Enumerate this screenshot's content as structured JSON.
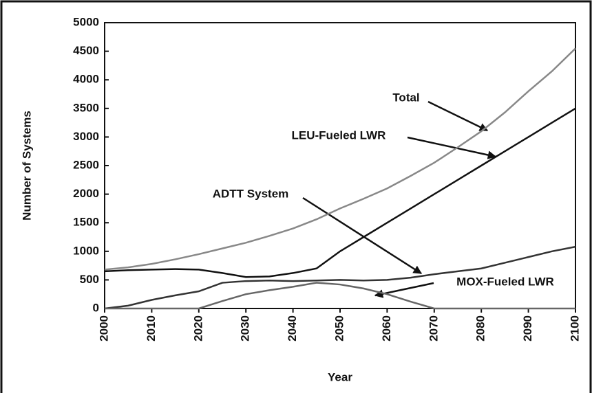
{
  "chart_data": {
    "type": "line",
    "xlabel": "Year",
    "ylabel": "Number of Systems",
    "x": [
      2000,
      2005,
      2010,
      2015,
      2020,
      2025,
      2030,
      2035,
      2040,
      2045,
      2050,
      2055,
      2060,
      2065,
      2070,
      2075,
      2080,
      2085,
      2090,
      2095,
      2100
    ],
    "series": [
      {
        "name": "Total",
        "color": "#888888",
        "values": [
          680,
          720,
          780,
          860,
          950,
          1050,
          1150,
          1270,
          1400,
          1560,
          1750,
          1920,
          2100,
          2320,
          2550,
          2820,
          3100,
          3430,
          3800,
          4150,
          4550
        ]
      },
      {
        "name": "LEU-Fueled LWR",
        "color": "#111111",
        "values": [
          650,
          670,
          680,
          690,
          680,
          620,
          550,
          560,
          620,
          700,
          1000,
          1250,
          1500,
          1750,
          2000,
          2250,
          2500,
          2750,
          3000,
          3250,
          3500
        ]
      },
      {
        "name": "ADTT System",
        "color": "#333333",
        "values": [
          0,
          50,
          150,
          230,
          300,
          450,
          480,
          490,
          480,
          490,
          500,
          490,
          500,
          540,
          600,
          650,
          700,
          800,
          900,
          1000,
          1080
        ]
      },
      {
        "name": "MOX-Fueled LWR",
        "color": "#666666",
        "values": [
          0,
          0,
          0,
          0,
          0,
          130,
          250,
          320,
          380,
          450,
          420,
          350,
          250,
          120,
          0,
          0,
          0,
          0,
          0,
          0,
          0
        ]
      }
    ],
    "xlim": [
      2000,
      2100
    ],
    "xticks": [
      2000,
      2010,
      2020,
      2030,
      2040,
      2050,
      2060,
      2070,
      2080,
      2090,
      2100
    ],
    "ylim": [
      0,
      5000
    ],
    "yticks": [
      0,
      500,
      1000,
      1500,
      2000,
      2500,
      3000,
      3500,
      4000,
      4500,
      5000
    ],
    "grid": false
  }
}
